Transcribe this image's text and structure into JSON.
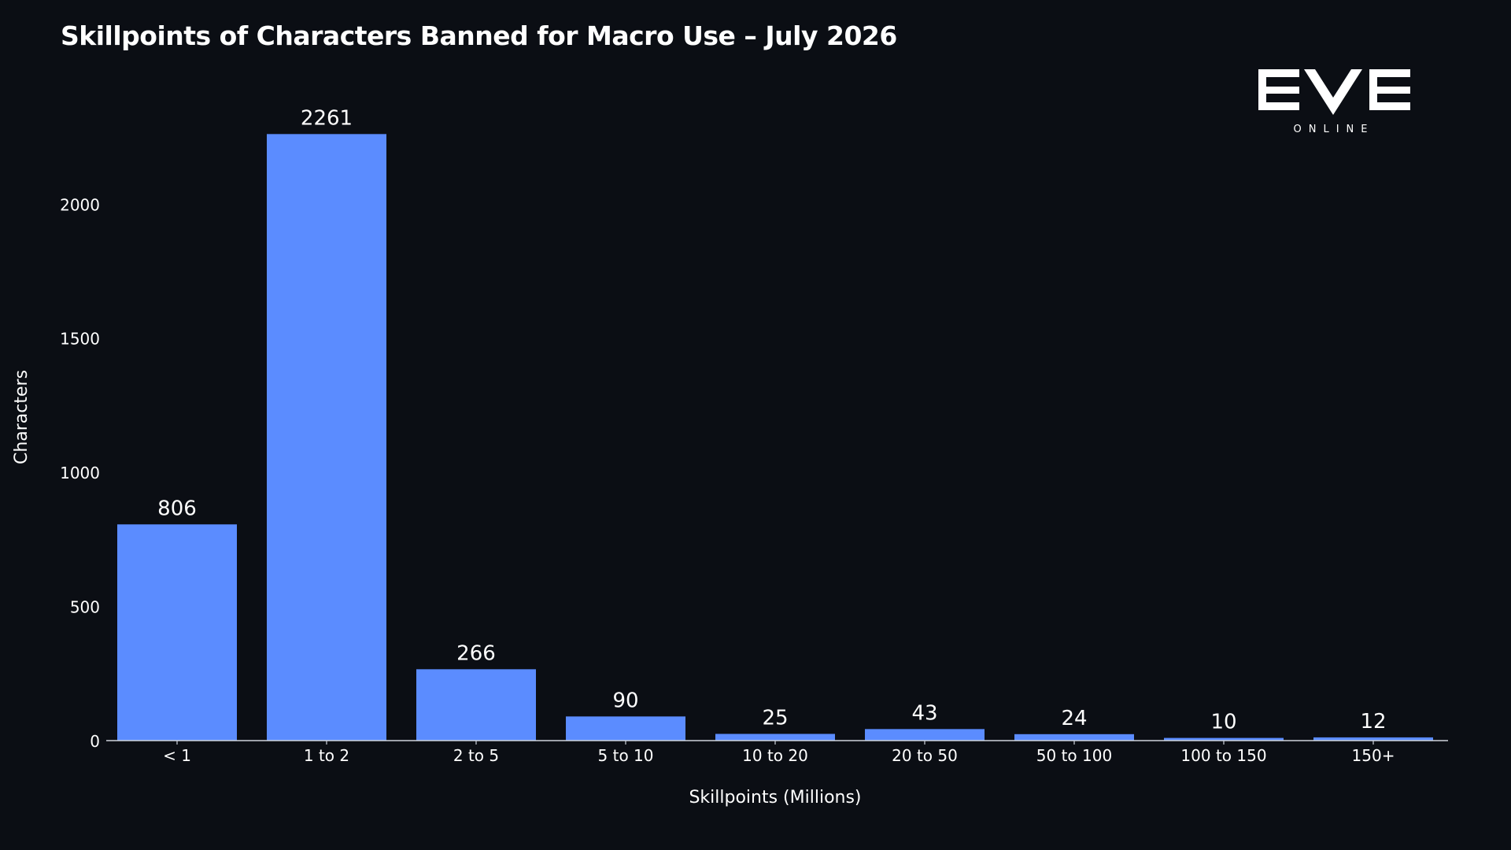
{
  "title": "Skillpoints of Characters Banned for Macro Use – July 2026",
  "logo": {
    "text": "EVE",
    "subtext": "ONLINE"
  },
  "colors": {
    "background": "#0b0e14",
    "bar": "#5b8cff",
    "text": "#ffffff",
    "axis": "#cfd3dc"
  },
  "chart_data": {
    "type": "bar",
    "categories": [
      "< 1",
      "1 to 2",
      "2 to 5",
      "5 to 10",
      "10 to 20",
      "20 to 50",
      "50 to 100",
      "100 to 150",
      "150+"
    ],
    "values": [
      806,
      2261,
      266,
      90,
      25,
      43,
      24,
      10,
      12
    ],
    "title": "Skillpoints of Characters Banned for Macro Use – July 2026",
    "xlabel": "Skillpoints (Millions)",
    "ylabel": "Characters",
    "ylim": [
      0,
      2350
    ],
    "yticks": [
      0,
      500,
      1000,
      1500,
      2000
    ],
    "grid": false,
    "data_labels": true
  }
}
